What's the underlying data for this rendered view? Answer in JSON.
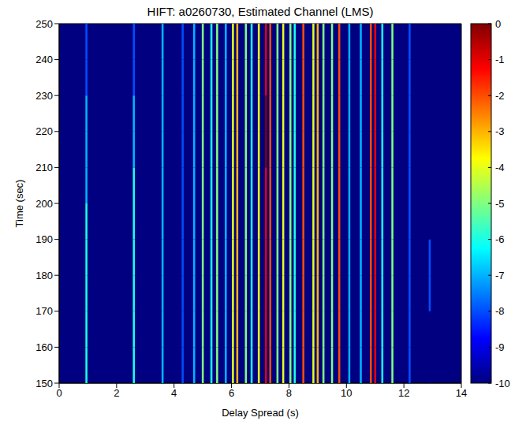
{
  "chart_data": {
    "type": "heatmap",
    "title": "HIFT: a0260730, Estimated Channel (LMS)",
    "x_label": "Delay Spread (s)",
    "y_label": "Time (sec)",
    "x": [
      0.95,
      2.6,
      3.6,
      4.3,
      4.7,
      5.0,
      5.3,
      5.5,
      5.8,
      6.05,
      6.2,
      6.5,
      6.7,
      6.95,
      7.2,
      7.35,
      7.6,
      7.8,
      8.05,
      8.2,
      8.5,
      8.85,
      9.0,
      9.2,
      9.5,
      9.75,
      10.1,
      10.5,
      10.85,
      11.0,
      11.25,
      11.6,
      12.2,
      12.9
    ],
    "y_bins": [
      150,
      160,
      170,
      180,
      190,
      200,
      210,
      220,
      230,
      240,
      250
    ],
    "cells": [
      [
        -6,
        -6,
        -7,
        -8,
        -7,
        -5,
        -6,
        -5,
        -7,
        -4,
        -3,
        -5,
        -6,
        -4,
        -1,
        -2,
        -5,
        -4,
        -5,
        -6,
        -2,
        -4,
        -3,
        -5,
        -5,
        -2,
        -7,
        -7,
        -2,
        -1,
        -6,
        -5,
        -8,
        -10
      ],
      [
        -6,
        -6,
        -7,
        -8,
        -7,
        -5,
        -6,
        -5,
        -7,
        -4,
        -3,
        -5,
        -6,
        -4,
        -1,
        -2,
        -5,
        -4,
        -5,
        -6,
        -2,
        -4,
        -3,
        -5,
        -5,
        -2,
        -7,
        -7,
        -2,
        -1,
        -6,
        -5,
        -8,
        -10
      ],
      [
        -6,
        -6,
        -7,
        -8,
        -7,
        -5,
        -6,
        -5,
        -7,
        -4,
        -3,
        -5,
        -6,
        -4,
        -1,
        -2,
        -5,
        -4,
        -5,
        -6,
        -2,
        -4,
        -3,
        -5,
        -5,
        -2,
        -7,
        -7,
        -2,
        -1,
        -6,
        -5,
        -8,
        -8
      ],
      [
        -6,
        -6,
        -7,
        -8,
        -7,
        -5,
        -6,
        -5,
        -7,
        -4,
        -3,
        -5,
        -6,
        -4,
        -1,
        -2,
        -5,
        -4,
        -5,
        -6,
        -2,
        -4,
        -3,
        -5,
        -5,
        -2,
        -7,
        -7,
        -2,
        -1,
        -6,
        -5,
        -8,
        -8
      ],
      [
        -6,
        -6,
        -7,
        -8,
        -7,
        -5,
        -6,
        -5,
        -7,
        -4,
        -3,
        -5,
        -6,
        -4,
        -1,
        -2,
        -5,
        -4,
        -5,
        -6,
        -2,
        -4,
        -3,
        -5,
        -5,
        -2,
        -7,
        -7,
        -2,
        -1,
        -6,
        -5,
        -8,
        -10
      ],
      [
        -7,
        -6,
        -7,
        -8,
        -7,
        -5,
        -6,
        -5,
        -7,
        -4,
        -3,
        -5,
        -6,
        -4,
        -1,
        -2,
        -5,
        -4,
        -5,
        -6,
        -2,
        -4,
        -3,
        -5,
        -5,
        -2,
        -7,
        -7,
        -2,
        -1,
        -6,
        -5,
        -8,
        -10
      ],
      [
        -7,
        -7,
        -7,
        -8,
        -7,
        -5,
        -6,
        -5,
        -7,
        -4,
        -3,
        -5,
        -6,
        -4,
        0,
        -2,
        -5,
        -4,
        -5,
        -6,
        -2,
        -4,
        -3,
        -5,
        -5,
        -2,
        -7,
        -7,
        -2,
        -1,
        -6,
        -5,
        -8,
        -10
      ],
      [
        -7,
        -7,
        -7,
        -8,
        -7,
        -5,
        -6,
        -5,
        -7,
        -4,
        -3,
        -5,
        -6,
        -4,
        0,
        -2,
        -5,
        -4,
        -5,
        -6,
        -2,
        -4,
        -3,
        -5,
        -5,
        -2,
        -7,
        -7,
        -2,
        -1,
        -6,
        -5,
        -8,
        -10
      ],
      [
        -8,
        -8,
        -7,
        -8,
        -7,
        -5,
        -6,
        -5,
        -7,
        -4,
        -3,
        -5,
        -6,
        -4,
        -1,
        -2,
        -5,
        -4,
        -5,
        -6,
        -2,
        -4,
        -3,
        -5,
        -5,
        -2,
        -7,
        -7,
        -2,
        -1,
        -6,
        -5,
        -8,
        -10
      ],
      [
        -8,
        -8,
        -7,
        -8,
        -7,
        -5,
        -6,
        -5,
        -7,
        -4,
        -3,
        -5,
        -6,
        -4,
        -1,
        -2,
        -5,
        -4,
        -5,
        -6,
        -2,
        -4,
        -3,
        -5,
        -5,
        -2,
        -7,
        -7,
        -2,
        -1,
        -6,
        -5,
        -8,
        -10
      ]
    ],
    "xlim": [
      0,
      14
    ],
    "xticks": [
      0,
      2,
      4,
      6,
      8,
      10,
      12,
      14
    ],
    "ylim": [
      150,
      250
    ],
    "yticks": [
      150,
      160,
      170,
      180,
      190,
      200,
      210,
      220,
      230,
      240,
      250
    ],
    "colorbar": {
      "range": [
        -10,
        0
      ],
      "ticks": [
        0,
        -1,
        -2,
        -3,
        -4,
        -5,
        -6,
        -7,
        -8,
        -9,
        -10
      ]
    }
  }
}
